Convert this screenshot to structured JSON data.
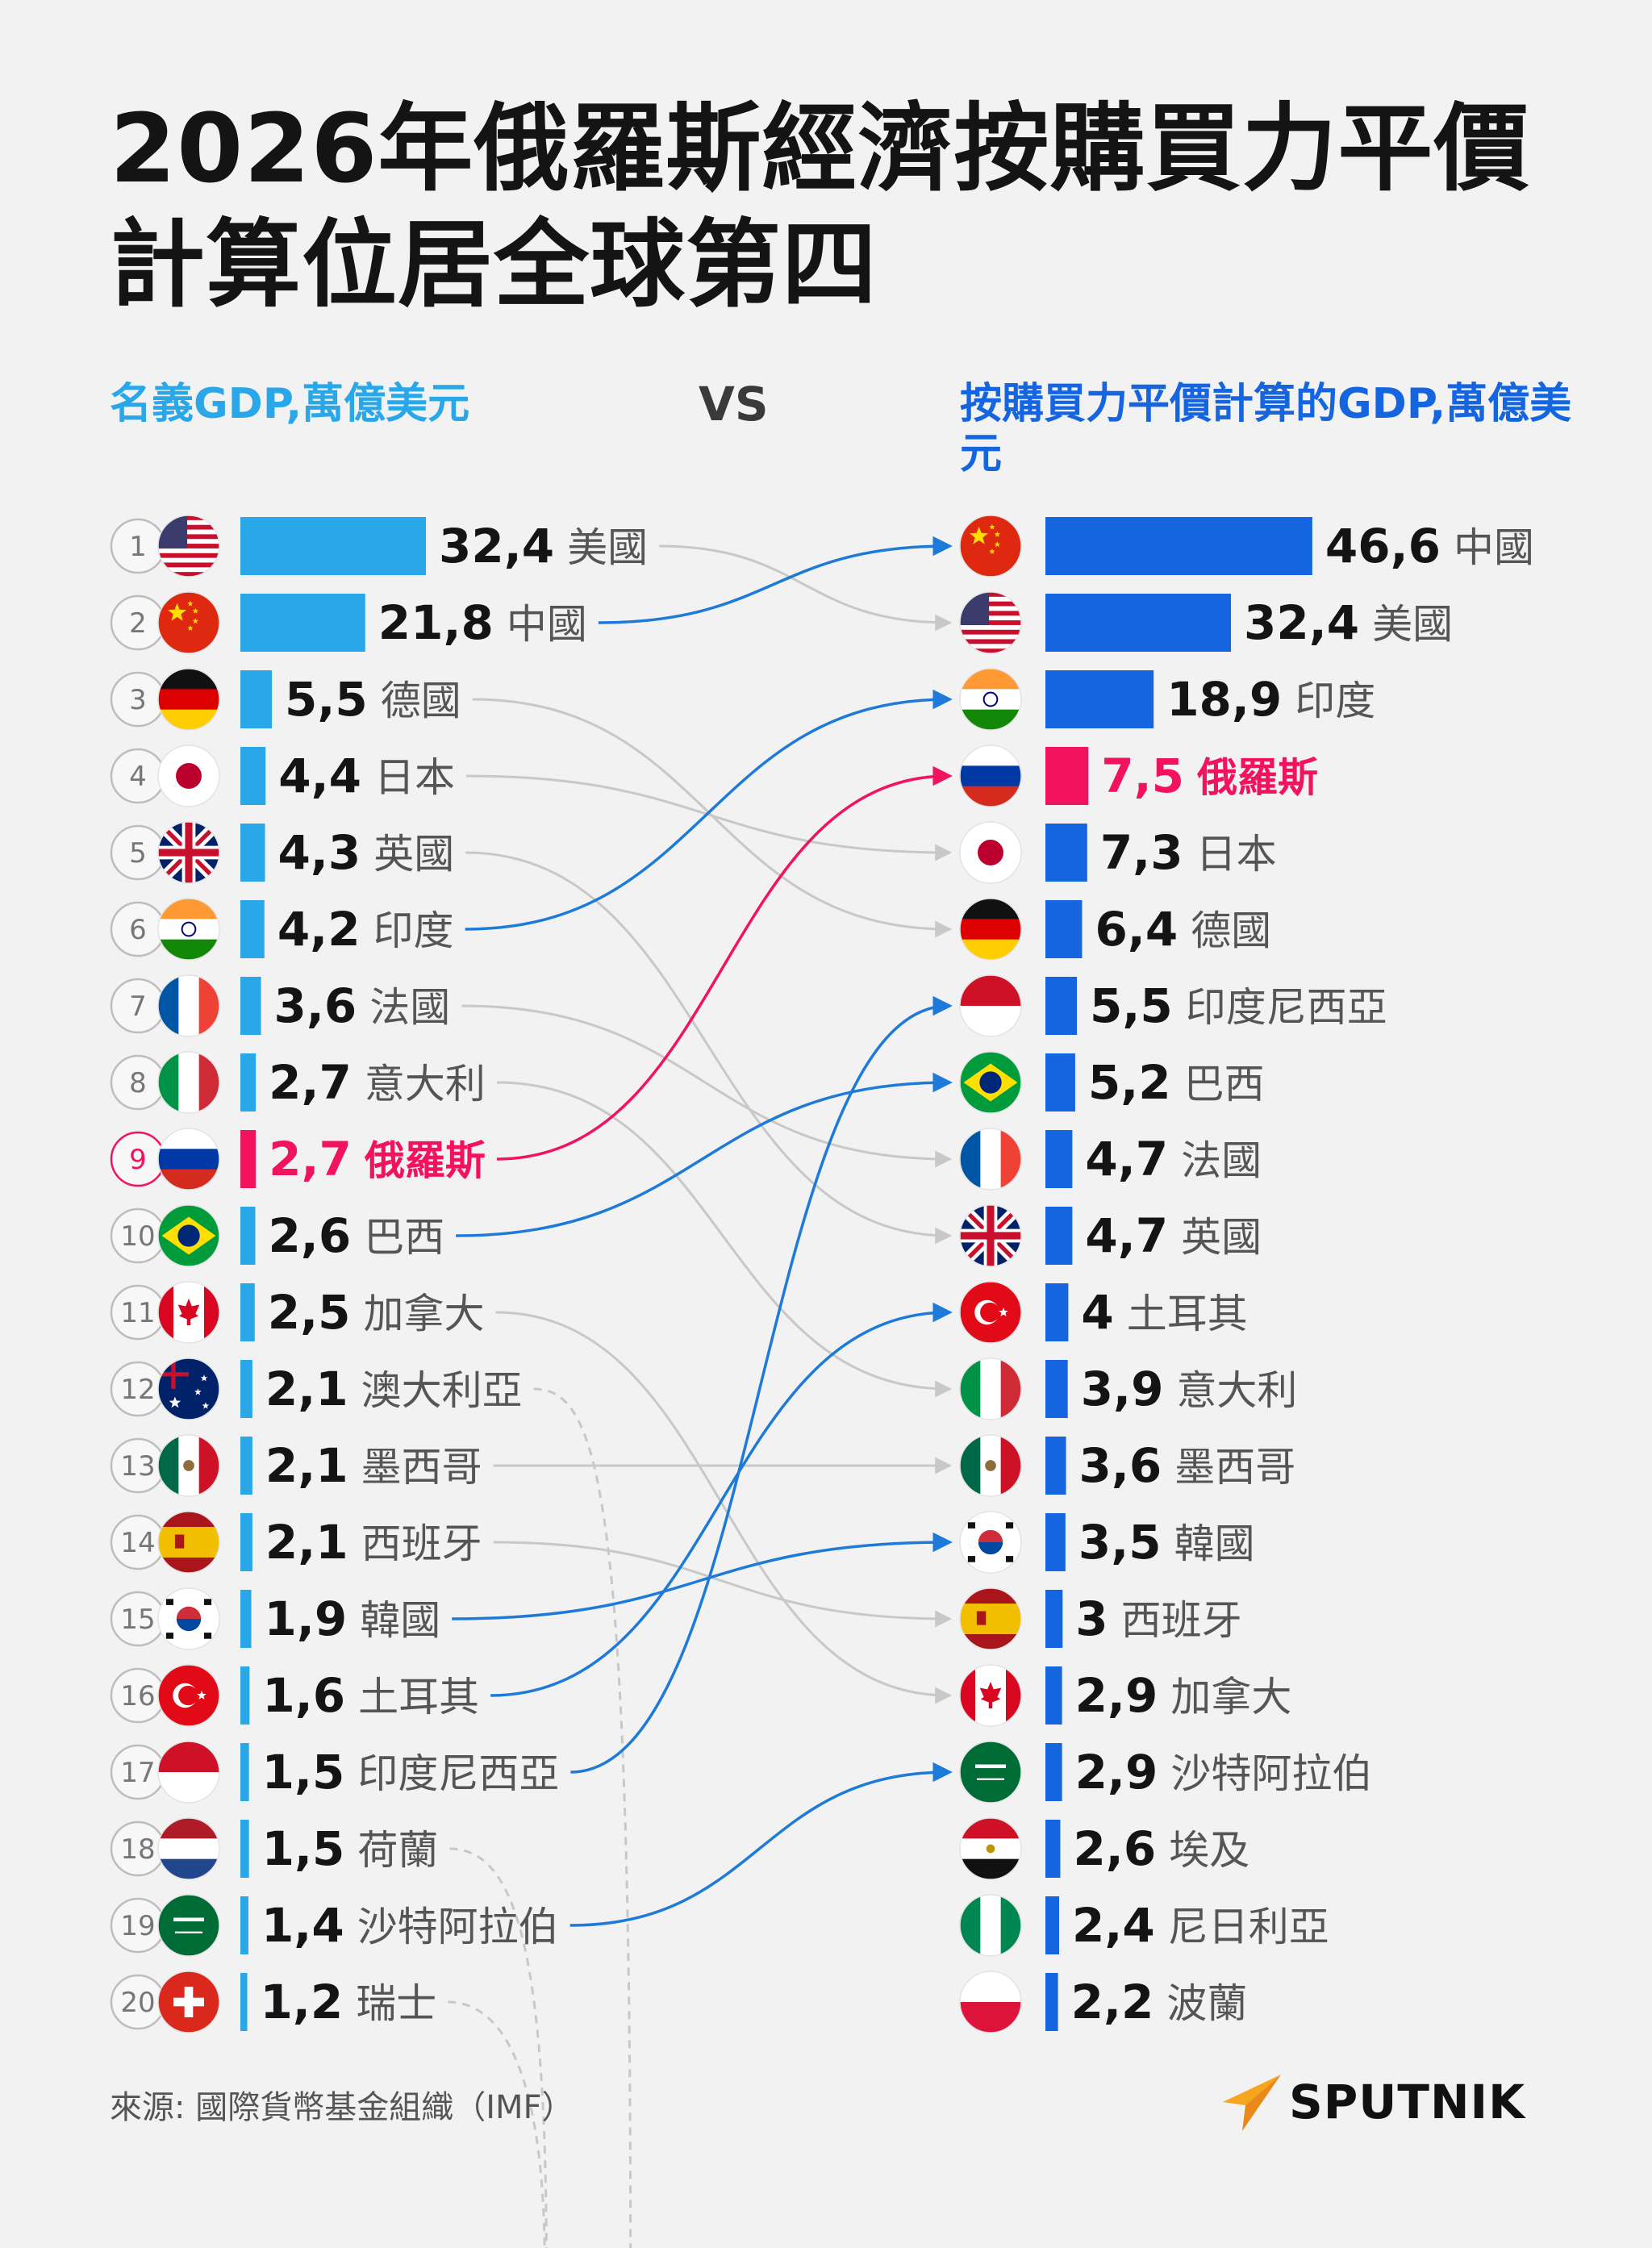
{
  "title": "2026年俄羅斯經濟按購買力平價計算位居全球第四",
  "left_header": "名義GDP,萬億美元",
  "vs": "VS",
  "right_header": "按購買力平價計算的GDP,萬億美元",
  "source": "來源: 國際貨幣基金組織（IMF）",
  "logo": {
    "text": "SPUTNIK",
    "icon": "sputnik-arrow-icon"
  },
  "colors": {
    "nominal_bar": "#2aa7e8",
    "ppp_bar": "#1565e0",
    "highlight": "#f2125e",
    "connector_gray": "#c8c8c8",
    "connector_up": "#1e7ad8",
    "logo_orange": "#f7a51c"
  },
  "chart_data": [
    {
      "type": "bar",
      "title": "名義GDP,萬億美元",
      "orientation": "horizontal",
      "categories": [
        "美國",
        "中國",
        "德國",
        "日本",
        "英國",
        "印度",
        "法國",
        "意大利",
        "俄羅斯",
        "巴西",
        "加拿大",
        "澳大利亞",
        "墨西哥",
        "西班牙",
        "韓國",
        "土耳其",
        "印度尼西亞",
        "荷蘭",
        "沙特阿拉伯",
        "瑞士"
      ],
      "ranks": [
        "1",
        "2",
        "3",
        "4",
        "5",
        "6",
        "7",
        "8",
        "9",
        "10",
        "11",
        "12",
        "13",
        "14",
        "15",
        "16",
        "17",
        "18",
        "19",
        "20"
      ],
      "values": [
        32.4,
        21.8,
        5.5,
        4.4,
        4.3,
        4.2,
        3.6,
        2.7,
        2.7,
        2.6,
        2.5,
        2.1,
        2.1,
        2.1,
        1.9,
        1.6,
        1.5,
        1.5,
        1.4,
        1.2
      ],
      "value_labels": [
        "32,4",
        "21,8",
        "5,5",
        "4,4",
        "4,3",
        "4,2",
        "3,6",
        "2,7",
        "2,7",
        "2,6",
        "2,5",
        "2,1",
        "2,1",
        "2,1",
        "1,9",
        "1,6",
        "1,5",
        "1,5",
        "1,4",
        "1,2"
      ],
      "flags": [
        "us-flag-icon",
        "cn-flag-icon",
        "de-flag-icon",
        "jp-flag-icon",
        "gb-flag-icon",
        "in-flag-icon",
        "fr-flag-icon",
        "it-flag-icon",
        "ru-flag-icon",
        "br-flag-icon",
        "ca-flag-icon",
        "au-flag-icon",
        "mx-flag-icon",
        "es-flag-icon",
        "kr-flag-icon",
        "tr-flag-icon",
        "id-flag-icon",
        "nl-flag-icon",
        "sa-flag-icon",
        "ch-flag-icon"
      ],
      "highlight": "俄羅斯"
    },
    {
      "type": "bar",
      "title": "按購買力平價計算的GDP,萬億美元",
      "orientation": "horizontal",
      "categories": [
        "中國",
        "美國",
        "印度",
        "俄羅斯",
        "日本",
        "德國",
        "印度尼西亞",
        "巴西",
        "法國",
        "英國",
        "土耳其",
        "意大利",
        "墨西哥",
        "韓國",
        "西班牙",
        "加拿大",
        "沙特阿拉伯",
        "埃及",
        "尼日利亞",
        "波蘭"
      ],
      "values": [
        46.6,
        32.4,
        18.9,
        7.5,
        7.3,
        6.4,
        5.5,
        5.2,
        4.7,
        4.7,
        4,
        3.9,
        3.6,
        3.5,
        3,
        2.9,
        2.9,
        2.6,
        2.4,
        2.2
      ],
      "value_labels": [
        "46,6",
        "32,4",
        "18,9",
        "7,5",
        "7,3",
        "6,4",
        "5,5",
        "5,2",
        "4,7",
        "4,7",
        "4",
        "3,9",
        "3,6",
        "3,5",
        "3",
        "2,9",
        "2,9",
        "2,6",
        "2,4",
        "2,2"
      ],
      "flags": [
        "cn-flag-icon",
        "us-flag-icon",
        "in-flag-icon",
        "ru-flag-icon",
        "jp-flag-icon",
        "de-flag-icon",
        "id-flag-icon",
        "br-flag-icon",
        "fr-flag-icon",
        "gb-flag-icon",
        "tr-flag-icon",
        "it-flag-icon",
        "mx-flag-icon",
        "kr-flag-icon",
        "es-flag-icon",
        "ca-flag-icon",
        "sa-flag-icon",
        "eg-flag-icon",
        "ng-flag-icon",
        "pl-flag-icon"
      ],
      "highlight": "俄羅斯"
    }
  ]
}
